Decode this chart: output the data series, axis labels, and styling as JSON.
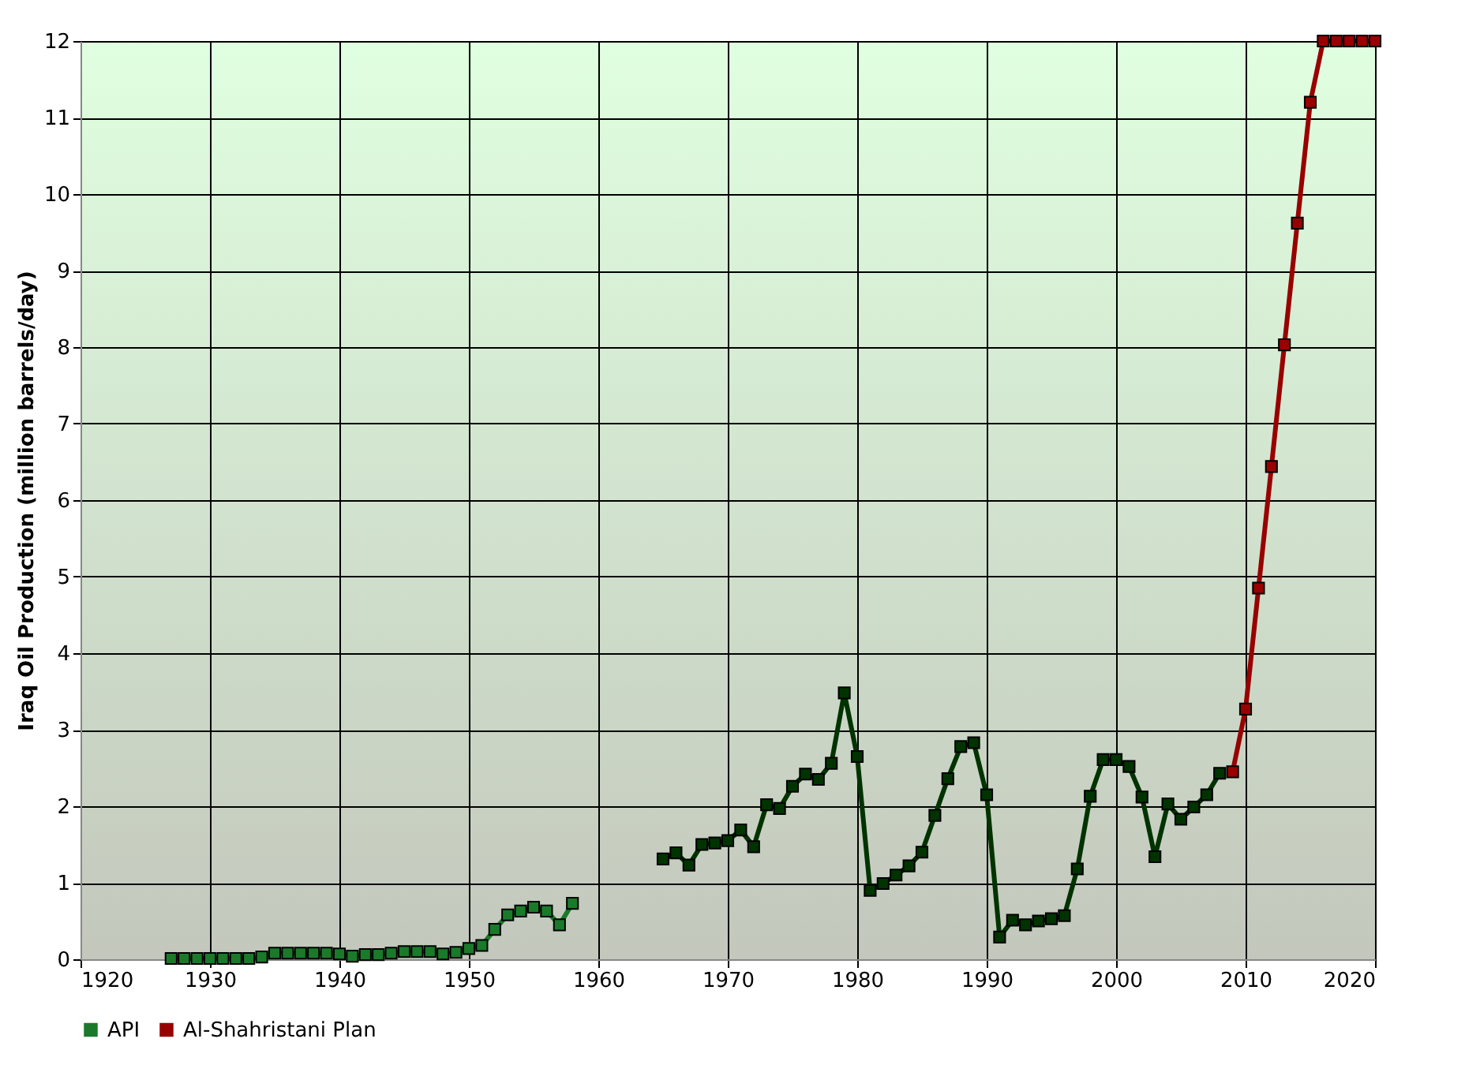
{
  "chart_data": {
    "type": "line",
    "ylabel": "Iraq Oil Production (million barrels/day)",
    "xlim": [
      1920,
      2020
    ],
    "xticks": [
      1920,
      1930,
      1940,
      1950,
      1960,
      1970,
      1980,
      1990,
      2000,
      2010,
      2020
    ],
    "ylim": [
      0,
      12
    ],
    "yticks": [
      0,
      1,
      2,
      3,
      4,
      5,
      6,
      7,
      8,
      9,
      10,
      11,
      12
    ],
    "grid": true,
    "legend": "bottom",
    "marker": "square",
    "line_style": "solid",
    "series": [
      {
        "name": "API",
        "color": "#1a7a2a",
        "x": [
          1927,
          1928,
          1929,
          1930,
          1931,
          1932,
          1933,
          1934,
          1935,
          1936,
          1937,
          1938,
          1939,
          1940,
          1941,
          1942,
          1943,
          1944,
          1945,
          1946,
          1947,
          1948,
          1949,
          1950,
          1951,
          1952,
          1953,
          1954,
          1955,
          1956,
          1957,
          1958
        ],
        "values": [
          0.01,
          0.01,
          0.01,
          0.01,
          0.01,
          0.01,
          0.01,
          0.03,
          0.08,
          0.08,
          0.08,
          0.08,
          0.08,
          0.07,
          0.04,
          0.06,
          0.06,
          0.08,
          0.1,
          0.1,
          0.1,
          0.07,
          0.09,
          0.14,
          0.18,
          0.39,
          0.58,
          0.63,
          0.68,
          0.63,
          0.45,
          0.73
        ]
      },
      {
        "color": "#003300",
        "x": [
          1965,
          1966,
          1967,
          1968,
          1969,
          1970,
          1971,
          1972,
          1973,
          1974,
          1975,
          1976,
          1977,
          1978,
          1979,
          1980,
          1981,
          1982,
          1983,
          1984,
          1985,
          1986,
          1987,
          1988,
          1989,
          1990,
          1991,
          1992,
          1993,
          1994,
          1995,
          1996,
          1997,
          1998,
          1999,
          2000,
          2001,
          2002,
          2003,
          2004,
          2005,
          2006,
          2007,
          2008
        ],
        "values": [
          1.31,
          1.39,
          1.23,
          1.5,
          1.52,
          1.55,
          1.69,
          1.47,
          2.02,
          1.97,
          2.26,
          2.42,
          2.35,
          2.56,
          3.48,
          2.65,
          0.9,
          0.99,
          1.1,
          1.22,
          1.4,
          1.88,
          2.36,
          2.78,
          2.83,
          2.15,
          0.29,
          0.51,
          0.45,
          0.5,
          0.53,
          0.57,
          1.18,
          2.13,
          2.61,
          2.61,
          2.52,
          2.12,
          1.34,
          2.03,
          1.83,
          1.99,
          2.15,
          2.43
        ]
      },
      {
        "name": "Al-Shahristani Plan",
        "color": "#990000",
        "x": [
          2009,
          2010,
          2011,
          2012,
          2013,
          2014,
          2015,
          2016,
          2017,
          2018,
          2019,
          2020
        ],
        "values": [
          2.45,
          3.27,
          4.85,
          6.44,
          8.03,
          9.62,
          11.2,
          12,
          12,
          12,
          12,
          12
        ]
      }
    ]
  }
}
